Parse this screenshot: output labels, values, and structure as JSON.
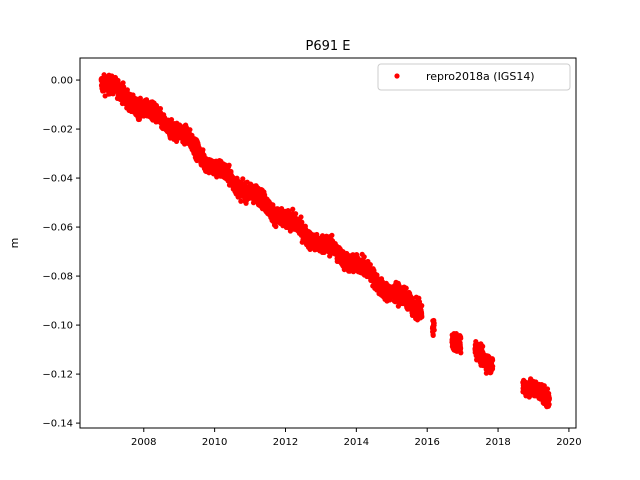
{
  "chart_data": {
    "type": "scatter",
    "title": "P691 E",
    "xlabel": "",
    "ylabel": "m",
    "xlim": [
      2006.2,
      2020.2
    ],
    "ylim": [
      -0.142,
      0.009
    ],
    "xticks": [
      2008,
      2010,
      2012,
      2014,
      2016,
      2018,
      2020
    ],
    "xtick_labels": [
      "2008",
      "2010",
      "2012",
      "2014",
      "2016",
      "2018",
      "2020"
    ],
    "yticks": [
      0.0,
      -0.02,
      -0.04,
      -0.06,
      -0.08,
      -0.1,
      -0.12,
      -0.14
    ],
    "ytick_labels": [
      "0.00",
      "−0.02",
      "−0.04",
      "−0.06",
      "−0.08",
      "−0.10",
      "−0.12",
      "−0.14"
    ],
    "grid": false,
    "legend_position": "top-right",
    "series": [
      {
        "name": "repro2018a (IGS14)",
        "color": "#ff0000",
        "marker": "circle",
        "coverage": [
          [
            2006.8,
            2015.85
          ],
          [
            2016.15,
            2016.2
          ],
          [
            2016.7,
            2016.95
          ],
          [
            2017.35,
            2017.85
          ],
          [
            2018.7,
            2019.45
          ]
        ],
        "trend": [
          [
            2006.8,
            0.0
          ],
          [
            2008.0,
            -0.012
          ],
          [
            2009.0,
            -0.021
          ],
          [
            2010.0,
            -0.036
          ],
          [
            2011.0,
            -0.046
          ],
          [
            2012.0,
            -0.057
          ],
          [
            2013.0,
            -0.067
          ],
          [
            2014.0,
            -0.075
          ],
          [
            2015.0,
            -0.087
          ],
          [
            2015.8,
            -0.093
          ],
          [
            2016.18,
            -0.102
          ],
          [
            2016.85,
            -0.106
          ],
          [
            2017.6,
            -0.113
          ],
          [
            2019.0,
            -0.126
          ],
          [
            2019.45,
            -0.132
          ]
        ],
        "spread": 0.0025
      }
    ]
  }
}
